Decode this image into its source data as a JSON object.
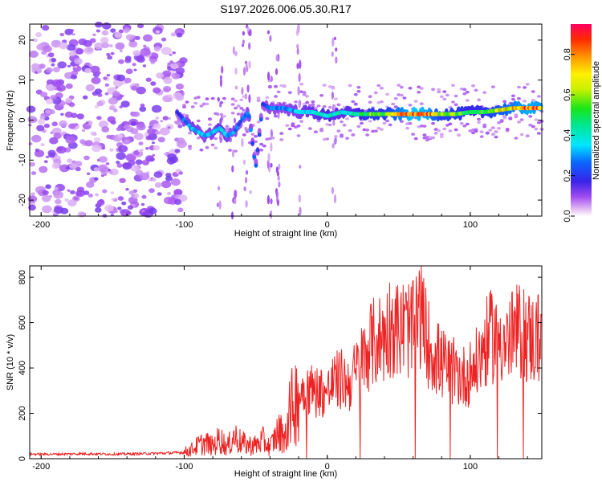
{
  "title": "S197.2026.006.05.30.R17",
  "spectrogram": {
    "xlabel": "Height of straight line (km)",
    "ylabel": "Frequency (Hz)",
    "xlim": [
      -208,
      150
    ],
    "ylim": [
      -24,
      24
    ],
    "xticks": [
      -200,
      -100,
      0,
      100
    ],
    "yticks": [
      -20,
      -10,
      0,
      10,
      20
    ],
    "colorbar": {
      "label": "Normalized spectral amplitude",
      "range": [
        0,
        0.95
      ],
      "ticks": [
        0.0,
        0.2,
        0.4,
        0.6,
        0.8
      ]
    }
  },
  "chart_data": [
    {
      "type": "heatmap",
      "title": "S197.2026.006.05.30.R17",
      "xlabel": "Height of straight line (km)",
      "ylabel": "Frequency (Hz)",
      "xlim": [
        -208,
        150
      ],
      "ylim": [
        -24,
        24
      ],
      "colorbar_label": "Normalized spectral amplitude",
      "colorbar_range": [
        0,
        0.95
      ],
      "ridge": {
        "x": [
          -105,
          -100,
          -95,
          -90,
          -85,
          -80,
          -75,
          -70,
          -65,
          -60,
          -55,
          -50,
          -45,
          -40,
          -30,
          -20,
          -10,
          0,
          10,
          20,
          30,
          40,
          50,
          60,
          70,
          80,
          90,
          100,
          110,
          120,
          130,
          140,
          150
        ],
        "freq": [
          2,
          0,
          -2,
          -3,
          -4,
          -3,
          -2,
          -4,
          -3,
          0,
          2,
          -12,
          4,
          3,
          3,
          2,
          2,
          1,
          2,
          1.5,
          1.5,
          1.5,
          1.5,
          1.5,
          1.5,
          1.5,
          1.5,
          2,
          2,
          2.5,
          3,
          3,
          3
        ],
        "amplitude": [
          0.2,
          0.3,
          0.35,
          0.35,
          0.3,
          0.35,
          0.4,
          0.35,
          0.3,
          0.25,
          0.3,
          0.25,
          0.25,
          0.3,
          0.3,
          0.35,
          0.4,
          0.45,
          0.4,
          0.45,
          0.6,
          0.55,
          0.8,
          0.95,
          0.9,
          0.6,
          0.6,
          0.5,
          0.55,
          0.7,
          0.8,
          0.9,
          0.85
        ]
      }
    },
    {
      "type": "line",
      "xlabel": "Height of straight line (km)",
      "ylabel": "SNR (10 * v/v)",
      "xlim": [
        -208,
        150
      ],
      "ylim": [
        0,
        850
      ],
      "xticks": [
        -200,
        -100,
        0,
        100
      ],
      "yticks": [
        0,
        200,
        400,
        600,
        800
      ],
      "color": "#ee2222",
      "series": [
        {
          "name": "SNR",
          "x": [
            -208,
            -190,
            -170,
            -150,
            -130,
            -110,
            -100,
            -95,
            -90,
            -85,
            -80,
            -75,
            -70,
            -65,
            -60,
            -55,
            -50,
            -45,
            -40,
            -35,
            -30,
            -25,
            -20,
            -15,
            -10,
            -5,
            0,
            5,
            10,
            15,
            20,
            25,
            30,
            35,
            40,
            45,
            50,
            55,
            60,
            65,
            70,
            75,
            80,
            85,
            90,
            95,
            100,
            105,
            110,
            115,
            120,
            125,
            130,
            135,
            140,
            145,
            150
          ],
          "y": [
            20,
            20,
            22,
            20,
            22,
            25,
            28,
            40,
            60,
            70,
            55,
            90,
            50,
            100,
            70,
            60,
            60,
            80,
            50,
            110,
            120,
            220,
            280,
            320,
            300,
            300,
            290,
            340,
            350,
            330,
            380,
            440,
            500,
            520,
            540,
            600,
            560,
            580,
            560,
            640,
            520,
            460,
            420,
            390,
            380,
            360,
            380,
            420,
            500,
            540,
            560,
            500,
            540,
            560,
            540,
            520,
            560
          ]
        }
      ]
    }
  ]
}
